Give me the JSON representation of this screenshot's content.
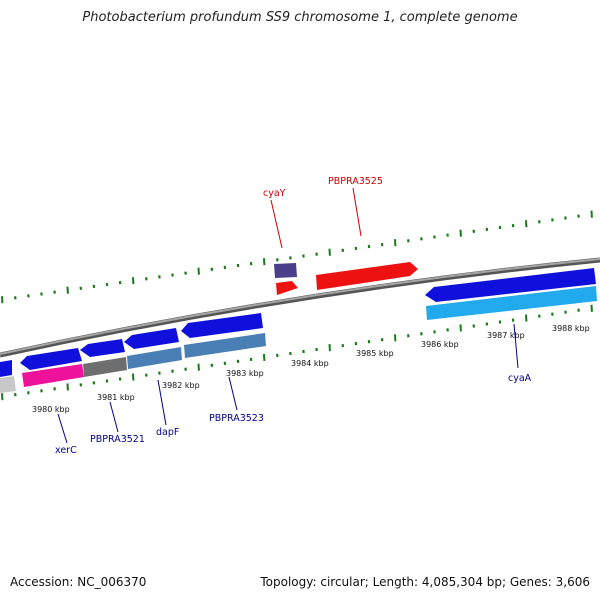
{
  "title": "Photobacterium profundum SS9 chromosome 1, complete genome",
  "footer": {
    "accession": "Accession: NC_006370",
    "summary": "Topology: circular; Length: 4,085,304 bp; Genes: 3,606"
  },
  "colors": {
    "backbone": "#8a8a8a",
    "tick": "#1a7a1a",
    "label_forward": "#cc0000",
    "label_reverse": "#00008b"
  },
  "kbp_ticks": [
    "3980 kbp",
    "3981 kbp",
    "3982 kbp",
    "3983 kbp",
    "3984 kbp",
    "3985 kbp",
    "3986 kbp",
    "3987 kbp",
    "3988 kbp"
  ],
  "gene_labels": [
    {
      "name": "cyaY",
      "strand": "forward"
    },
    {
      "name": "PBPRA3525",
      "strand": "forward"
    },
    {
      "name": "xerC",
      "strand": "reverse"
    },
    {
      "name": "PBPRA3521",
      "strand": "reverse"
    },
    {
      "name": "dapF",
      "strand": "reverse"
    },
    {
      "name": "PBPRA3523",
      "strand": "reverse"
    },
    {
      "name": "cyaA",
      "strand": "reverse"
    }
  ]
}
